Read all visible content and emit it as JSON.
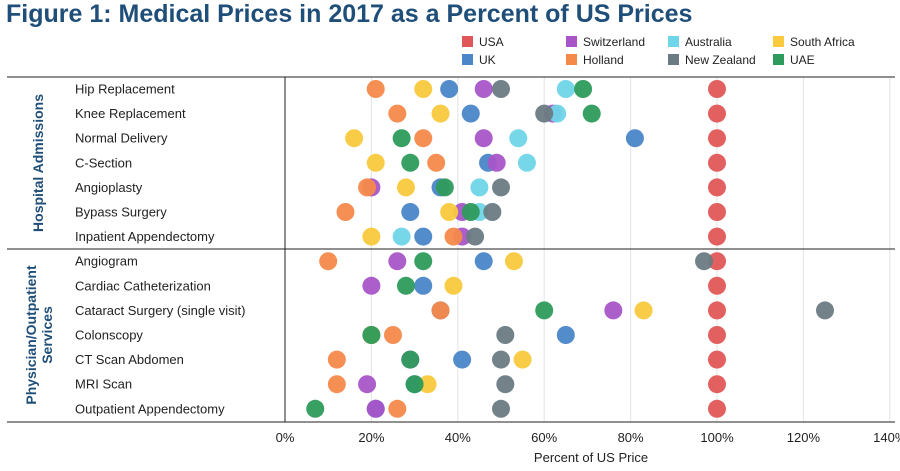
{
  "chart_data": {
    "type": "scatter",
    "title": "Figure 1: Medical Prices in 2017 as a Percent of US Prices",
    "xlabel": "Percent of US Price",
    "xlim": [
      0,
      140
    ],
    "xticks": [
      0,
      20,
      40,
      60,
      80,
      100,
      120,
      140
    ],
    "xtick_labels": [
      "0%",
      "20%",
      "40%",
      "60%",
      "80%",
      "100%",
      "120%",
      "140%"
    ],
    "grid": "vertical",
    "legend_position": "top-right",
    "groups": [
      {
        "label": "Hospital Admissions",
        "categories": [
          "Hip Replacement",
          "Knee Replacement",
          "Normal Delivery",
          "C-Section",
          "Angioplasty",
          "Bypass Surgery",
          "Inpatient Appendectomy"
        ]
      },
      {
        "label": "Physician/Outpatient Services",
        "categories": [
          "Angiogram",
          "Cardiac Catheterization",
          "Cataract Surgery (single visit)",
          "Colonscopy",
          "CT Scan Abdomen",
          "MRI Scan",
          "Outpatient Appendectomy"
        ]
      }
    ],
    "categories": [
      "Hip Replacement",
      "Knee Replacement",
      "Normal Delivery",
      "C-Section",
      "Angioplasty",
      "Bypass Surgery",
      "Inpatient Appendectomy",
      "Angiogram",
      "Cardiac Catheterization",
      "Cataract Surgery (single visit)",
      "Colonscopy",
      "CT Scan Abdomen",
      "MRI Scan",
      "Outpatient Appendectomy"
    ],
    "series": [
      {
        "name": "USA",
        "color": "#e15759",
        "values": [
          100,
          100,
          100,
          100,
          100,
          100,
          100,
          100,
          100,
          100,
          100,
          100,
          100,
          100
        ]
      },
      {
        "name": "UK",
        "color": "#4a86c8",
        "values": [
          38,
          43,
          81,
          47,
          36,
          29,
          32,
          46,
          32,
          36,
          65,
          41,
          30,
          21
        ]
      },
      {
        "name": "Switzerland",
        "color": "#a855c8",
        "values": [
          46,
          62,
          46,
          49,
          20,
          41,
          41,
          26,
          20,
          76,
          20,
          29,
          19,
          21
        ]
      },
      {
        "name": "Holland",
        "color": "#f5894a",
        "values": [
          21,
          26,
          32,
          35,
          19,
          14,
          39,
          10,
          null,
          36,
          25,
          12,
          12,
          26
        ]
      },
      {
        "name": "Australia",
        "color": "#6fd5e8",
        "values": [
          65,
          63,
          54,
          56,
          45,
          45,
          27,
          null,
          null,
          null,
          null,
          null,
          null,
          null
        ]
      },
      {
        "name": "New Zealand",
        "color": "#6b7b83",
        "values": [
          50,
          60,
          null,
          null,
          50,
          48,
          44,
          97,
          null,
          125,
          51,
          50,
          51,
          50
        ]
      },
      {
        "name": "South Africa",
        "color": "#f9c93e",
        "values": [
          32,
          36,
          16,
          21,
          28,
          38,
          20,
          53,
          39,
          83,
          20,
          55,
          33,
          null
        ]
      },
      {
        "name": "UAE",
        "color": "#2e9b5c",
        "values": [
          69,
          71,
          27,
          29,
          37,
          43,
          null,
          32,
          28,
          60,
          20,
          29,
          30,
          7
        ]
      }
    ]
  }
}
